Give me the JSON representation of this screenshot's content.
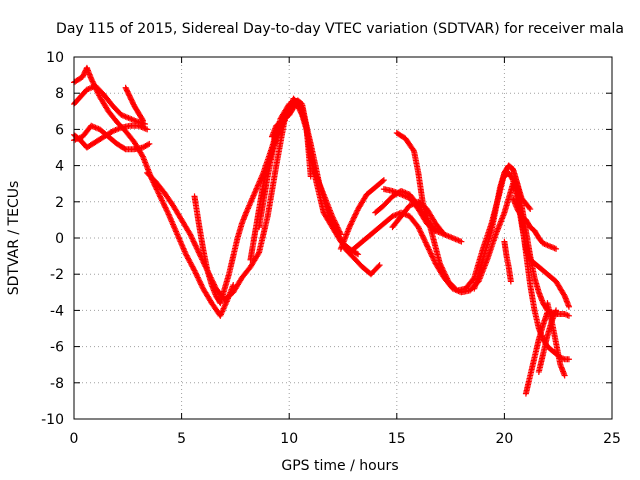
{
  "chart_data": {
    "type": "scatter",
    "title": "Day 115 of 2015, Sidereal Day-to-day VTEC variation (SDTVAR) for receiver mala",
    "xlabel": "GPS time / hours",
    "ylabel": "SDTVAR / TECUs",
    "xlim": [
      0,
      25
    ],
    "ylim": [
      -10,
      10
    ],
    "xticks": [
      "0",
      "5",
      "10",
      "15",
      "20",
      "25"
    ],
    "yticks": [
      "10",
      "8",
      "6",
      "4",
      "2",
      "0",
      "-2",
      "-4",
      "-6",
      "-8",
      "-10"
    ],
    "grid": true,
    "marker": "+",
    "color": "#ff0000",
    "series": [
      {
        "x": [
          0.0,
          0.4,
          0.6,
          0.8,
          1.2,
          1.6,
          2.0,
          2.4,
          2.8,
          3.2,
          3.6,
          4.0,
          4.4,
          4.8,
          5.2,
          5.6,
          6.0,
          6.4,
          6.8,
          7.1,
          7.4
        ],
        "y": [
          8.6,
          8.9,
          9.4,
          8.8,
          7.8,
          7.0,
          6.4,
          5.9,
          5.3,
          4.5,
          3.3,
          2.3,
          1.3,
          0.2,
          -0.9,
          -1.8,
          -2.8,
          -3.6,
          -4.3,
          -3.5,
          -2.6
        ]
      },
      {
        "x": [
          0.0,
          0.3,
          0.6,
          1.0,
          1.4,
          1.8,
          2.2,
          2.6,
          3.0,
          3.3
        ],
        "y": [
          7.4,
          7.8,
          8.2,
          8.4,
          7.9,
          7.3,
          6.8,
          6.6,
          6.4,
          6.3
        ]
      },
      {
        "x": [
          0.0,
          0.3,
          0.6,
          1.0,
          1.4,
          1.8,
          2.2,
          2.6,
          3.0,
          3.4
        ],
        "y": [
          5.7,
          5.4,
          5.0,
          5.3,
          5.6,
          5.9,
          6.1,
          6.2,
          6.2,
          6.0
        ]
      },
      {
        "x": [
          0.0,
          0.4,
          0.8,
          1.2,
          1.6,
          2.0,
          2.4,
          2.8,
          3.2,
          3.5
        ],
        "y": [
          5.4,
          5.6,
          6.2,
          6.0,
          5.6,
          5.2,
          4.9,
          4.9,
          5.0,
          5.2
        ]
      },
      {
        "x": [
          2.4,
          2.6,
          2.8,
          3.0,
          3.2
        ],
        "y": [
          8.3,
          7.8,
          7.3,
          6.9,
          6.5
        ]
      },
      {
        "x": [
          3.4,
          3.8,
          4.2,
          4.6,
          5.0,
          5.4,
          5.8,
          6.2,
          6.6,
          7.0,
          7.4,
          7.8,
          8.2,
          8.6,
          9.0,
          9.4,
          9.8,
          10.2,
          10.6,
          11.0,
          11.4,
          11.8,
          12.2,
          12.6,
          13.0,
          13.4,
          13.8,
          14.2
        ],
        "y": [
          3.6,
          3.1,
          2.5,
          1.8,
          1.0,
          0.2,
          -0.8,
          -1.8,
          -2.8,
          -3.4,
          -3.0,
          -2.2,
          -1.6,
          -0.8,
          1.2,
          4.0,
          6.6,
          7.7,
          7.2,
          5.2,
          3.0,
          1.4,
          0.4,
          -0.6,
          -1.1,
          -1.6,
          -2.0,
          -1.5
        ]
      },
      {
        "x": [
          5.6,
          5.8,
          6.0,
          6.2,
          6.4,
          6.6,
          6.8,
          7.0,
          7.2,
          7.4,
          7.6,
          7.8,
          8.0,
          8.4,
          8.8,
          9.2,
          9.6,
          10.0,
          10.4,
          10.8,
          11.2,
          11.6,
          12.0,
          12.4,
          12.8,
          13.2
        ],
        "y": [
          2.3,
          0.8,
          -0.6,
          -1.8,
          -2.6,
          -3.2,
          -3.6,
          -2.8,
          -2.0,
          -1.0,
          0.0,
          0.8,
          1.4,
          2.5,
          3.6,
          5.0,
          6.6,
          7.4,
          7.6,
          6.2,
          3.4,
          1.4,
          0.6,
          -0.2,
          -0.6,
          -0.9
        ]
      },
      {
        "x": [
          8.2,
          8.4,
          8.6,
          8.8,
          9.0,
          9.2,
          9.4,
          9.6,
          9.8,
          10.0,
          10.2,
          10.4,
          10.6,
          10.8,
          11.0,
          11.2,
          11.6,
          12.0,
          12.4
        ],
        "y": [
          -1.2,
          0.2,
          1.6,
          3.0,
          4.0,
          4.8,
          5.4,
          6.0,
          6.6,
          7.0,
          7.4,
          7.3,
          6.8,
          6.0,
          4.4,
          3.6,
          2.4,
          1.2,
          0.2
        ]
      },
      {
        "x": [
          9.2,
          9.4,
          9.6,
          9.8,
          10.0,
          10.2,
          10.4,
          10.6,
          10.8,
          11.0
        ],
        "y": [
          5.6,
          6.2,
          6.4,
          6.6,
          6.8,
          7.2,
          7.6,
          7.4,
          6.2,
          3.4
        ]
      },
      {
        "x": [
          8.6,
          8.8,
          9.0,
          9.2,
          9.4,
          9.6,
          9.8
        ],
        "y": [
          0.6,
          2.0,
          3.4,
          4.6,
          5.8,
          6.4,
          6.5
        ]
      },
      {
        "x": [
          12.4,
          12.8,
          13.2,
          13.6,
          14.0,
          14.4
        ],
        "y": [
          -0.6,
          0.6,
          1.6,
          2.4,
          2.8,
          3.2
        ]
      },
      {
        "x": [
          12.8,
          13.2,
          13.6,
          14.0,
          14.4,
          14.8,
          15.2,
          15.6,
          16.0,
          16.4,
          16.8,
          17.2,
          17.6,
          18.0,
          18.4,
          18.8,
          19.2,
          19.6,
          20.0,
          20.2,
          20.4
        ],
        "y": [
          -0.8,
          -0.4,
          0.0,
          0.4,
          0.8,
          1.2,
          1.4,
          1.2,
          0.6,
          -0.4,
          -1.4,
          -2.2,
          -2.8,
          -3.0,
          -2.9,
          -2.4,
          -1.2,
          0.2,
          1.4,
          2.2,
          3.0
        ]
      },
      {
        "x": [
          15.0,
          15.4,
          15.8,
          16.0,
          16.2,
          16.6,
          17.0,
          17.4,
          17.8,
          18.2,
          18.6,
          19.0,
          19.4,
          19.8,
          20.0,
          20.2,
          20.4,
          20.6,
          20.8,
          21.2
        ],
        "y": [
          5.8,
          5.5,
          4.8,
          3.6,
          2.0,
          0.4,
          -1.4,
          -2.4,
          -2.9,
          -2.8,
          -2.2,
          -0.6,
          0.8,
          2.6,
          3.6,
          4.0,
          3.8,
          3.0,
          2.2,
          1.6
        ]
      },
      {
        "x": [
          14.4,
          14.8,
          15.2,
          15.6,
          16.0,
          16.4,
          16.8,
          17.2,
          17.6,
          18.0
        ],
        "y": [
          2.7,
          2.6,
          2.4,
          2.2,
          1.6,
          0.8,
          0.4,
          0.2,
          0.0,
          -0.2
        ]
      },
      {
        "x": [
          14.0,
          14.4,
          14.8,
          15.2,
          15.6,
          16.0,
          16.4,
          16.8
        ],
        "y": [
          1.4,
          1.8,
          2.3,
          2.6,
          2.4,
          1.8,
          1.0,
          0.4
        ]
      },
      {
        "x": [
          14.8,
          15.2,
          15.6,
          16.0,
          16.4,
          16.8,
          17.2
        ],
        "y": [
          0.6,
          1.2,
          1.8,
          2.0,
          1.6,
          0.8,
          0.2
        ]
      },
      {
        "x": [
          18.6,
          19.0,
          19.4,
          19.6,
          19.8,
          20.0,
          20.2,
          20.4,
          20.6,
          20.8,
          21.0,
          21.2,
          21.4,
          21.6,
          21.8,
          22.0,
          22.4,
          22.8,
          23.0
        ],
        "y": [
          -2.8,
          -1.2,
          0.4,
          1.6,
          2.8,
          3.6,
          4.0,
          3.8,
          3.0,
          1.8,
          0.4,
          -1.0,
          -2.2,
          -3.0,
          -3.6,
          -4.0,
          -4.2,
          -4.2,
          -4.3
        ]
      },
      {
        "x": [
          20.0,
          20.2,
          20.4,
          20.6,
          20.8,
          21.0,
          21.2,
          21.6,
          22.0,
          22.4,
          22.8,
          23.0
        ],
        "y": [
          3.4,
          3.6,
          3.2,
          2.2,
          0.8,
          -0.6,
          -1.2,
          -1.6,
          -2.0,
          -2.4,
          -3.2,
          -3.8
        ]
      },
      {
        "x": [
          20.4,
          20.6,
          20.8,
          21.0,
          21.2,
          21.4,
          21.6,
          21.8,
          22.0,
          22.4
        ],
        "y": [
          2.2,
          1.6,
          1.2,
          1.0,
          0.6,
          0.4,
          0.0,
          -0.3,
          -0.4,
          -0.6
        ]
      },
      {
        "x": [
          20.0,
          20.1,
          20.2,
          20.3
        ],
        "y": [
          -0.2,
          -1.0,
          -1.6,
          -2.4
        ]
      },
      {
        "x": [
          20.6,
          20.8,
          21.0,
          21.2,
          21.4,
          21.6,
          21.8,
          22.0,
          22.2,
          22.4,
          22.6,
          22.8,
          23.0
        ],
        "y": [
          2.6,
          1.0,
          -0.8,
          -2.6,
          -4.0,
          -5.0,
          -5.6,
          -6.0,
          -6.2,
          -6.4,
          -6.6,
          -6.7,
          -6.7
        ]
      },
      {
        "x": [
          21.0,
          21.2,
          21.4,
          21.6,
          21.8,
          22.0
        ],
        "y": [
          -8.6,
          -7.6,
          -6.6,
          -5.6,
          -4.8,
          -4.1
        ]
      },
      {
        "x": [
          21.6,
          21.8,
          22.0,
          22.2,
          22.4
        ],
        "y": [
          -7.4,
          -6.4,
          -5.4,
          -4.6,
          -4.0
        ]
      },
      {
        "x": [
          22.0,
          22.2,
          22.4,
          22.6,
          22.8
        ],
        "y": [
          -3.6,
          -4.6,
          -5.8,
          -7.0,
          -7.6
        ]
      }
    ]
  }
}
